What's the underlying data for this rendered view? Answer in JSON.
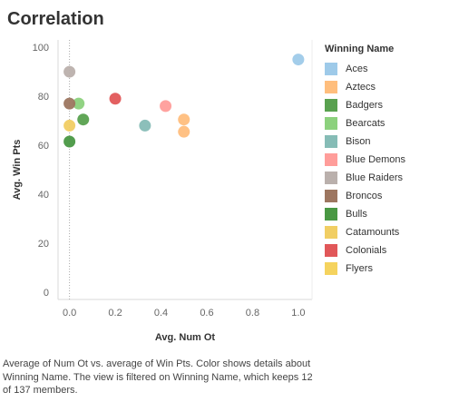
{
  "title": "Correlation",
  "caption": "Average of Num Ot vs. average of Win Pts.  Color shows details about Winning Name. The view is filtered on Winning Name, which keeps 12 of 137 members.",
  "chart_data": {
    "type": "scatter",
    "xlabel": "Avg. Num Ot",
    "ylabel": "Avg. Win Pts",
    "xlim": [
      -0.05,
      1.06
    ],
    "ylim": [
      -3,
      103
    ],
    "xticks": [
      0.0,
      0.2,
      0.4,
      0.6,
      0.8,
      1.0
    ],
    "xtick_labels": [
      "0.0",
      "0.2",
      "0.4",
      "0.6",
      "0.8",
      "1.0"
    ],
    "yticks": [
      0,
      20,
      40,
      60,
      80,
      100
    ],
    "ytick_labels": [
      "0",
      "20",
      "40",
      "60",
      "80",
      "100"
    ],
    "grid": false,
    "zero_line_x": true,
    "legend": {
      "title": "Winning Name",
      "placement": "right",
      "entries": [
        {
          "name": "Aces",
          "color": "#9ecae9"
        },
        {
          "name": "Aztecs",
          "color": "#ffbe7d"
        },
        {
          "name": "Badgers",
          "color": "#59a14f"
        },
        {
          "name": "Bearcats",
          "color": "#8cd17d"
        },
        {
          "name": "Bison",
          "color": "#86bcb6"
        },
        {
          "name": "Blue Demons",
          "color": "#ff9d9a"
        },
        {
          "name": "Blue Raiders",
          "color": "#bab0ac"
        },
        {
          "name": "Broncos",
          "color": "#9d7660"
        },
        {
          "name": "Bulls",
          "color": "#499843"
        },
        {
          "name": "Catamounts",
          "color": "#f1ce63"
        },
        {
          "name": "Colonials",
          "color": "#e15759"
        },
        {
          "name": "Flyers",
          "color": "#f5d35e"
        }
      ]
    },
    "points": [
      {
        "name": "Aces",
        "x": 1.0,
        "y": 95
      },
      {
        "name": "Aztecs",
        "x": 0.5,
        "y": 70.5
      },
      {
        "name": "Aztecs",
        "x": 0.5,
        "y": 65.5
      },
      {
        "name": "Badgers",
        "x": 0.06,
        "y": 70.5
      },
      {
        "name": "Bearcats",
        "x": 0.04,
        "y": 77
      },
      {
        "name": "Bison",
        "x": 0.33,
        "y": 68
      },
      {
        "name": "Blue Demons",
        "x": 0.42,
        "y": 76
      },
      {
        "name": "Blue Raiders",
        "x": 0.0,
        "y": 90
      },
      {
        "name": "Broncos",
        "x": 0.0,
        "y": 77
      },
      {
        "name": "Bulls",
        "x": 0.0,
        "y": 61.5
      },
      {
        "name": "Catamounts",
        "x": 0.0,
        "y": 68
      },
      {
        "name": "Colonials",
        "x": 0.2,
        "y": 79
      }
    ]
  }
}
